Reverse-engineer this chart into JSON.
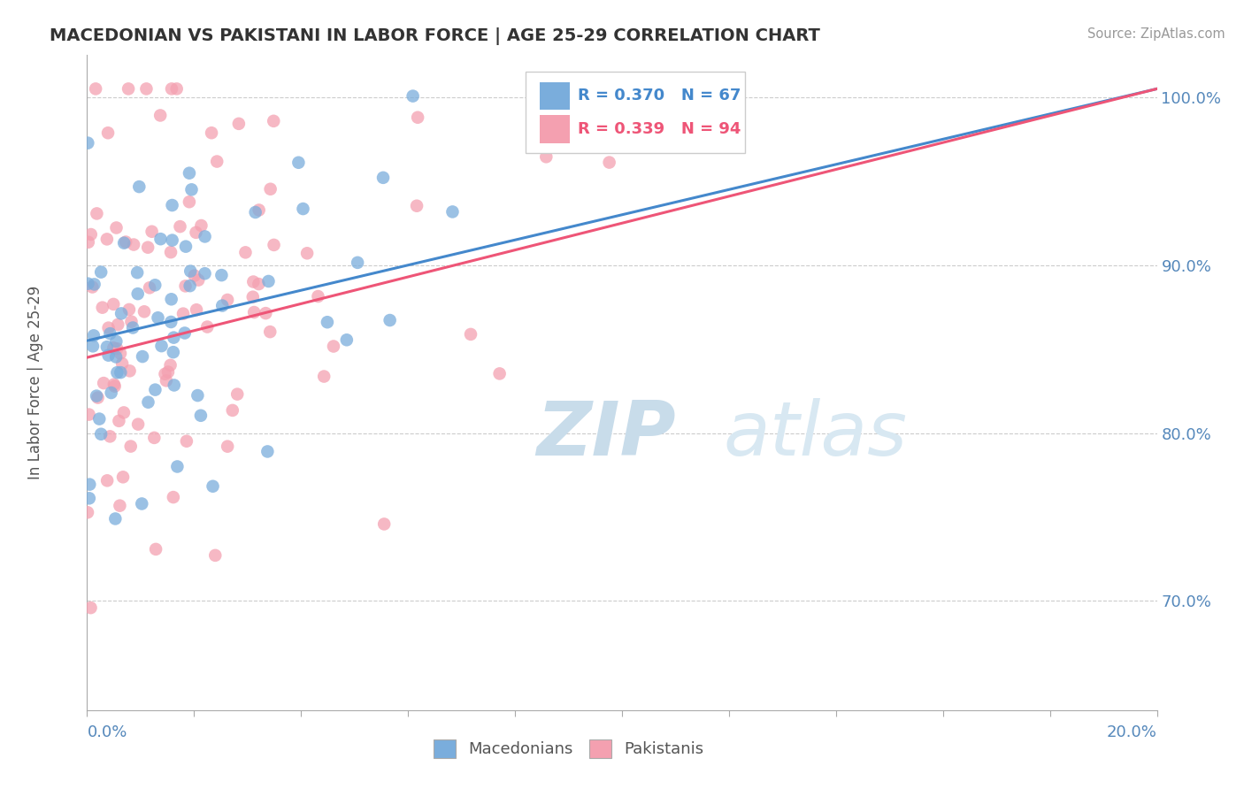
{
  "title": "MACEDONIAN VS PAKISTANI IN LABOR FORCE | AGE 25-29 CORRELATION CHART",
  "source": "Source: ZipAtlas.com",
  "ylabel": "In Labor Force | Age 25-29",
  "legend_macedonians": "Macedonians",
  "legend_pakistanis": "Pakistanis",
  "R_macedonian": 0.37,
  "N_macedonian": 67,
  "R_pakistani": 0.339,
  "N_pakistani": 94,
  "macedonian_color": "#7aaddc",
  "pakistani_color": "#f4a0b0",
  "macedonian_line_color": "#4488cc",
  "pakistani_line_color": "#ee5577",
  "title_color": "#333333",
  "axis_label_color": "#5588bb",
  "watermark_color": "#d0e4f0",
  "background_color": "#ffffff",
  "xlim": [
    0.0,
    0.2
  ],
  "ylim": [
    0.635,
    1.025
  ],
  "yaxis_values": [
    0.7,
    0.8,
    0.9,
    1.0
  ],
  "yaxis_labels": [
    "70.0%",
    "80.0%",
    "90.0%",
    "100.0%"
  ],
  "mac_line_x0": 0.0,
  "mac_line_y0": 0.855,
  "mac_line_x1": 0.2,
  "mac_line_y1": 1.005,
  "pak_line_x0": 0.0,
  "pak_line_y0": 0.845,
  "pak_line_x1": 0.2,
  "pak_line_y1": 1.005
}
